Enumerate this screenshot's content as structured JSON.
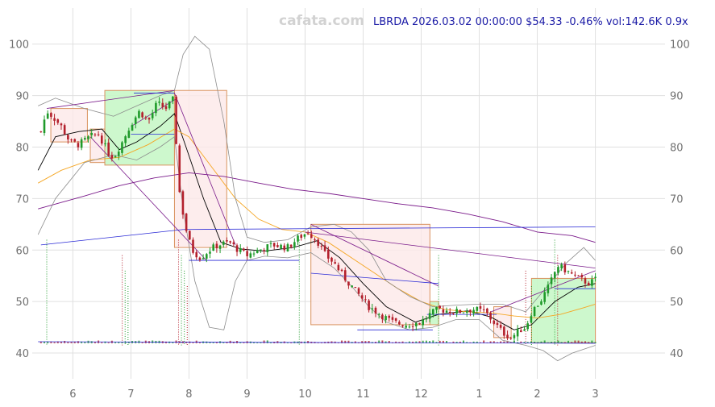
{
  "header": {
    "watermark": "cafata.com",
    "ticker_line": "LBRDA 2026.03.02 00:00:00 $54.33 -0.46% vol:142.6K 0.9x"
  },
  "colors": {
    "up": "#1f9a2a",
    "down": "#b3202c",
    "grid": "#e0e0e0",
    "box_up": "#c8f7c8",
    "box_down": "#fde8e8",
    "box_edge": "#d9925e",
    "sma_short": "#000000",
    "sma_mid": "#f5a623",
    "sma_long": "#7a1a8a",
    "trend_blue": "#2a2ad6",
    "band": "#8c8c8c"
  },
  "chart_data": {
    "type": "candlestick",
    "ticker": "LBRDA",
    "y_range": [
      35,
      107
    ],
    "y_ticks": [
      40,
      50,
      60,
      70,
      80,
      90,
      100
    ],
    "x_range": [
      -0.7,
      10.2
    ],
    "x_ticks": [
      {
        "label": "6",
        "x": 0
      },
      {
        "label": "7",
        "x": 1
      },
      {
        "label": "8",
        "x": 2
      },
      {
        "label": "9",
        "x": 3
      },
      {
        "label": "10",
        "x": 4
      },
      {
        "label": "11",
        "x": 5
      },
      {
        "label": "12",
        "x": 6
      },
      {
        "label": "1",
        "x": 7
      },
      {
        "label": "2",
        "x": 8
      },
      {
        "label": "3",
        "x": 9
      }
    ],
    "price_path": [
      [
        -0.55,
        83
      ],
      [
        -0.45,
        87
      ],
      [
        -0.35,
        86
      ],
      [
        -0.2,
        84
      ],
      [
        -0.05,
        81
      ],
      [
        0.1,
        80.5
      ],
      [
        0.3,
        82
      ],
      [
        0.45,
        82.5
      ],
      [
        0.6,
        79
      ],
      [
        0.7,
        78
      ],
      [
        0.85,
        81
      ],
      [
        1.0,
        84.5
      ],
      [
        1.15,
        87
      ],
      [
        1.3,
        85
      ],
      [
        1.45,
        88.5
      ],
      [
        1.6,
        87.5
      ],
      [
        1.75,
        89.5
      ],
      [
        1.8,
        75
      ],
      [
        1.85,
        70
      ],
      [
        1.95,
        64
      ],
      [
        2.05,
        60
      ],
      [
        2.2,
        58.5
      ],
      [
        2.35,
        60
      ],
      [
        2.5,
        61
      ],
      [
        2.7,
        61.5
      ],
      [
        2.85,
        60
      ],
      [
        3.0,
        59
      ],
      [
        3.2,
        60
      ],
      [
        3.45,
        61
      ],
      [
        3.7,
        60.5
      ],
      [
        3.9,
        62.5
      ],
      [
        4.05,
        63.5
      ],
      [
        4.2,
        62
      ],
      [
        4.35,
        59
      ],
      [
        4.5,
        57.5
      ],
      [
        4.65,
        55
      ],
      [
        4.8,
        53
      ],
      [
        4.95,
        51
      ],
      [
        5.1,
        49
      ],
      [
        5.3,
        47.5
      ],
      [
        5.5,
        46
      ],
      [
        5.75,
        45.5
      ],
      [
        6.0,
        46
      ],
      [
        6.15,
        47.5
      ],
      [
        6.3,
        48.5
      ],
      [
        6.6,
        48
      ],
      [
        6.9,
        48.5
      ],
      [
        7.1,
        48
      ],
      [
        7.25,
        46
      ],
      [
        7.4,
        44
      ],
      [
        7.55,
        43
      ],
      [
        7.7,
        44.5
      ],
      [
        7.8,
        45
      ],
      [
        7.9,
        48
      ],
      [
        8.05,
        50
      ],
      [
        8.2,
        53
      ],
      [
        8.35,
        57
      ],
      [
        8.5,
        56
      ],
      [
        8.7,
        54.5
      ],
      [
        8.9,
        53.5
      ],
      [
        9.0,
        54.3
      ]
    ],
    "series": [
      {
        "type": "sma_short",
        "points": [
          [
            -0.6,
            75.5
          ],
          [
            -0.3,
            82
          ],
          [
            0.1,
            83
          ],
          [
            0.5,
            83.5
          ],
          [
            0.8,
            79.5
          ],
          [
            1.1,
            81
          ],
          [
            1.5,
            84
          ],
          [
            1.75,
            86.5
          ],
          [
            1.95,
            80
          ],
          [
            2.25,
            70
          ],
          [
            2.55,
            61.5
          ],
          [
            2.9,
            60.2
          ],
          [
            3.3,
            59.8
          ],
          [
            3.8,
            60.5
          ],
          [
            4.2,
            61.8
          ],
          [
            4.6,
            58.5
          ],
          [
            5.0,
            53.5
          ],
          [
            5.4,
            49
          ],
          [
            5.9,
            46
          ],
          [
            6.3,
            47.5
          ],
          [
            6.8,
            48.2
          ],
          [
            7.2,
            47
          ],
          [
            7.6,
            44.5
          ],
          [
            7.9,
            45.5
          ],
          [
            8.3,
            50
          ],
          [
            8.7,
            52.8
          ],
          [
            9.0,
            53.5
          ]
        ]
      },
      {
        "type": "sma_mid",
        "points": [
          [
            -0.6,
            73
          ],
          [
            -0.2,
            75.5
          ],
          [
            0.3,
            77.5
          ],
          [
            0.8,
            78
          ],
          [
            1.3,
            80.5
          ],
          [
            1.75,
            83.5
          ],
          [
            2.0,
            82
          ],
          [
            2.4,
            76
          ],
          [
            2.8,
            70
          ],
          [
            3.2,
            66
          ],
          [
            3.6,
            64
          ],
          [
            4.0,
            63.5
          ],
          [
            4.4,
            61.5
          ],
          [
            4.8,
            58.5
          ],
          [
            5.2,
            55.5
          ],
          [
            5.6,
            52.5
          ],
          [
            6.0,
            50
          ],
          [
            6.4,
            48.5
          ],
          [
            6.8,
            48
          ],
          [
            7.2,
            47.8
          ],
          [
            7.6,
            47.2
          ],
          [
            8.0,
            46.8
          ],
          [
            8.4,
            47.5
          ],
          [
            8.8,
            48.8
          ],
          [
            9.0,
            49.5
          ]
        ]
      },
      {
        "type": "sma_long",
        "points": [
          [
            -0.6,
            68
          ],
          [
            0.2,
            70.5
          ],
          [
            0.8,
            72.5
          ],
          [
            1.4,
            74
          ],
          [
            2.0,
            75
          ],
          [
            2.6,
            74.3
          ],
          [
            3.2,
            73
          ],
          [
            3.8,
            71.8
          ],
          [
            4.4,
            71
          ],
          [
            5.0,
            70
          ],
          [
            5.6,
            69
          ],
          [
            6.2,
            68.2
          ],
          [
            6.8,
            67
          ],
          [
            7.4,
            65.5
          ],
          [
            8.0,
            63.5
          ],
          [
            8.6,
            62.8
          ],
          [
            9.0,
            61.5
          ]
        ]
      },
      {
        "type": "band_upper",
        "points": [
          [
            -0.6,
            88
          ],
          [
            -0.3,
            89.5
          ],
          [
            0.2,
            87.5
          ],
          [
            0.7,
            86
          ],
          [
            1.1,
            88
          ],
          [
            1.5,
            90
          ],
          [
            1.75,
            91
          ],
          [
            1.9,
            98
          ],
          [
            2.1,
            101.5
          ],
          [
            2.35,
            99
          ],
          [
            2.6,
            85
          ],
          [
            2.8,
            70
          ],
          [
            3.0,
            62.5
          ],
          [
            3.3,
            61.5
          ],
          [
            3.7,
            62
          ],
          [
            4.1,
            64.5
          ],
          [
            4.5,
            65
          ],
          [
            4.8,
            63.5
          ],
          [
            5.1,
            60
          ],
          [
            5.4,
            54
          ],
          [
            5.8,
            51
          ],
          [
            6.2,
            49
          ],
          [
            6.6,
            49.3
          ],
          [
            7.0,
            49.5
          ],
          [
            7.4,
            49.5
          ],
          [
            7.8,
            48
          ],
          [
            8.1,
            52
          ],
          [
            8.5,
            57.5
          ],
          [
            8.8,
            60.5
          ],
          [
            9.0,
            58
          ]
        ]
      },
      {
        "type": "band_lower",
        "points": [
          [
            -0.6,
            63
          ],
          [
            -0.3,
            70
          ],
          [
            0.2,
            77
          ],
          [
            0.7,
            78.5
          ],
          [
            1.1,
            77.5
          ],
          [
            1.5,
            80
          ],
          [
            1.75,
            82
          ],
          [
            1.9,
            68
          ],
          [
            2.1,
            54
          ],
          [
            2.35,
            45
          ],
          [
            2.6,
            44.5
          ],
          [
            2.8,
            54
          ],
          [
            3.0,
            58
          ],
          [
            3.3,
            58.8
          ],
          [
            3.7,
            58.5
          ],
          [
            4.1,
            59.5
          ],
          [
            4.5,
            56.5
          ],
          [
            4.8,
            53
          ],
          [
            5.1,
            49
          ],
          [
            5.4,
            46
          ],
          [
            5.8,
            44.5
          ],
          [
            6.2,
            45
          ],
          [
            6.6,
            46.5
          ],
          [
            7.0,
            46.5
          ],
          [
            7.4,
            42.5
          ],
          [
            7.8,
            41.5
          ],
          [
            8.1,
            40.5
          ],
          [
            8.35,
            38.5
          ],
          [
            8.6,
            40
          ],
          [
            9.0,
            41.5
          ]
        ]
      }
    ],
    "trend_lines": [
      {
        "color": "sma_long",
        "from": [
          -0.45,
          87.5
        ],
        "to": [
          1.75,
          91
        ]
      },
      {
        "color": "sma_long",
        "from": [
          0.3,
          82
        ],
        "to": [
          2.3,
          58
        ]
      },
      {
        "color": "sma_long",
        "from": [
          1.75,
          90.5
        ],
        "to": [
          2.8,
          61
        ]
      },
      {
        "color": "sma_long",
        "from": [
          1.0,
          84
        ],
        "to": [
          1.8,
          89.5
        ]
      },
      {
        "color": "sma_long",
        "from": [
          4.0,
          63.5
        ],
        "to": [
          9.0,
          56.5
        ]
      },
      {
        "color": "sma_long",
        "from": [
          4.1,
          65
        ],
        "to": [
          6.3,
          53
        ]
      },
      {
        "color": "sma_long",
        "from": [
          7.2,
          48
        ],
        "to": [
          9.0,
          56
        ]
      },
      {
        "color": "trend_blue",
        "from": [
          -0.55,
          61
        ],
        "to": [
          1.9,
          64
        ]
      },
      {
        "color": "trend_blue",
        "from": [
          1.9,
          64
        ],
        "to": [
          9.0,
          64.5
        ]
      },
      {
        "color": "trend_blue",
        "from": [
          2.0,
          58
        ],
        "to": [
          3.9,
          58
        ]
      },
      {
        "color": "trend_blue",
        "from": [
          4.1,
          55.5
        ],
        "to": [
          6.3,
          53.5
        ]
      },
      {
        "color": "trend_blue",
        "from": [
          4.9,
          44.5
        ],
        "to": [
          6.2,
          44.5
        ]
      },
      {
        "color": "trend_blue",
        "from": [
          6.1,
          47.5
        ],
        "to": [
          7.3,
          47.5
        ]
      },
      {
        "color": "trend_blue",
        "from": [
          8.3,
          52.5
        ],
        "to": [
          9.0,
          52.5
        ]
      },
      {
        "color": "trend_blue",
        "from": [
          1.0,
          82.5
        ],
        "to": [
          1.75,
          82.5
        ]
      },
      {
        "color": "trend_blue",
        "from": [
          1.05,
          90.5
        ],
        "to": [
          1.75,
          90.5
        ]
      },
      {
        "color": "trend_blue",
        "from": [
          -0.6,
          42.2
        ],
        "to": [
          9.0,
          41.9
        ]
      }
    ],
    "boxes": [
      {
        "kind": "down",
        "x": [
          -0.38,
          0.25
        ],
        "y": [
          81,
          87.5
        ]
      },
      {
        "kind": "down",
        "x": [
          0.3,
          0.55
        ],
        "y": [
          77,
          83.5
        ]
      },
      {
        "kind": "up",
        "x": [
          0.55,
          1.75
        ],
        "y": [
          76.5,
          91
        ]
      },
      {
        "kind": "down",
        "x": [
          1.75,
          2.65
        ],
        "y": [
          60.5,
          91
        ]
      },
      {
        "kind": "down",
        "x": [
          4.1,
          6.15
        ],
        "y": [
          45.5,
          65
        ]
      },
      {
        "kind": "up",
        "x": [
          6.15,
          6.3
        ],
        "y": [
          45.5,
          50
        ]
      },
      {
        "kind": "down",
        "x": [
          7.25,
          7.55
        ],
        "y": [
          43,
          49
        ]
      },
      {
        "kind": "up",
        "x": [
          7.9,
          9.0
        ],
        "y": [
          42,
          54.5
        ]
      }
    ],
    "signal_lines_x": [
      -0.45,
      0.85,
      0.9,
      0.95,
      1.82,
      1.87,
      1.92,
      1.97,
      3.9,
      6.3,
      7.8,
      7.9,
      8.3,
      8.35
    ]
  }
}
